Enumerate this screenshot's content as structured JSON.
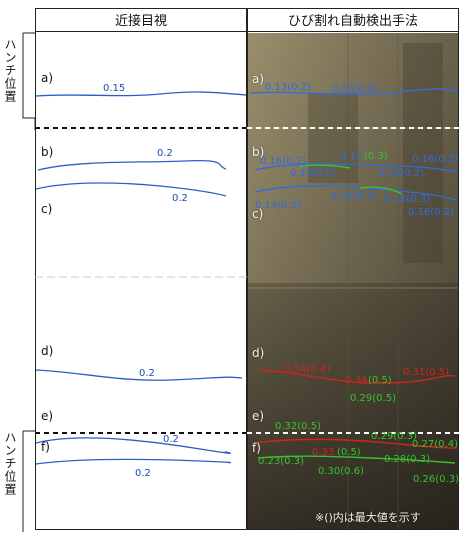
{
  "headers": {
    "left": "近接目視",
    "right": "ひび割れ自動検出手法"
  },
  "side_labels": {
    "top_haunch": "ハンチ位置",
    "bottom_haunch": "ハンチ位置"
  },
  "row_labels": {
    "a": "a)",
    "b": "b)",
    "c": "c)",
    "d": "d)",
    "e": "e)",
    "f": "f)"
  },
  "left_crack_values": {
    "a": "0.15",
    "b1": "0.2",
    "b2": "0.2",
    "d": "0.2",
    "f1": "0.2",
    "f2": "0.2"
  },
  "right_crack_texts": {
    "a1": "0.13(0.2)",
    "a2": "0.15(0.2)",
    "b1": "0.16(0.2)",
    "b2": "0.13(0.2)",
    "b3_green": "0.17",
    "b3_green_paren": "(0.3)",
    "b4": "0.15(0.2)",
    "b5": "0.16(0.2)",
    "c1": "0.14(0.2)",
    "c2": "0.15(0.2)",
    "c3": "0.15(0.3)",
    "c4": "0.16(0.2)",
    "d1": "0.34(0.4)",
    "d2": "0.34",
    "d2_paren": "(0.5)",
    "d3": "0.29(0.5)",
    "d4": "0.31(0.5)",
    "f_green1": "0.32(0.5)",
    "f1": "0.29(0.3)",
    "f2": "0.33",
    "f2_paren": "(0.5)",
    "f3": "0.27(0.4)",
    "f4": "0.23(0.3)",
    "f5": "0.30(0.6)",
    "f6": "0.28(0.3)",
    "f7": "0.26(0.3)"
  },
  "footnote": "※()内は最大値を示す",
  "colors": {
    "blue_line": "#2a5fc8",
    "green_line": "#38c22e",
    "red_line": "#d0241e",
    "photo_base": "#6c644d"
  }
}
